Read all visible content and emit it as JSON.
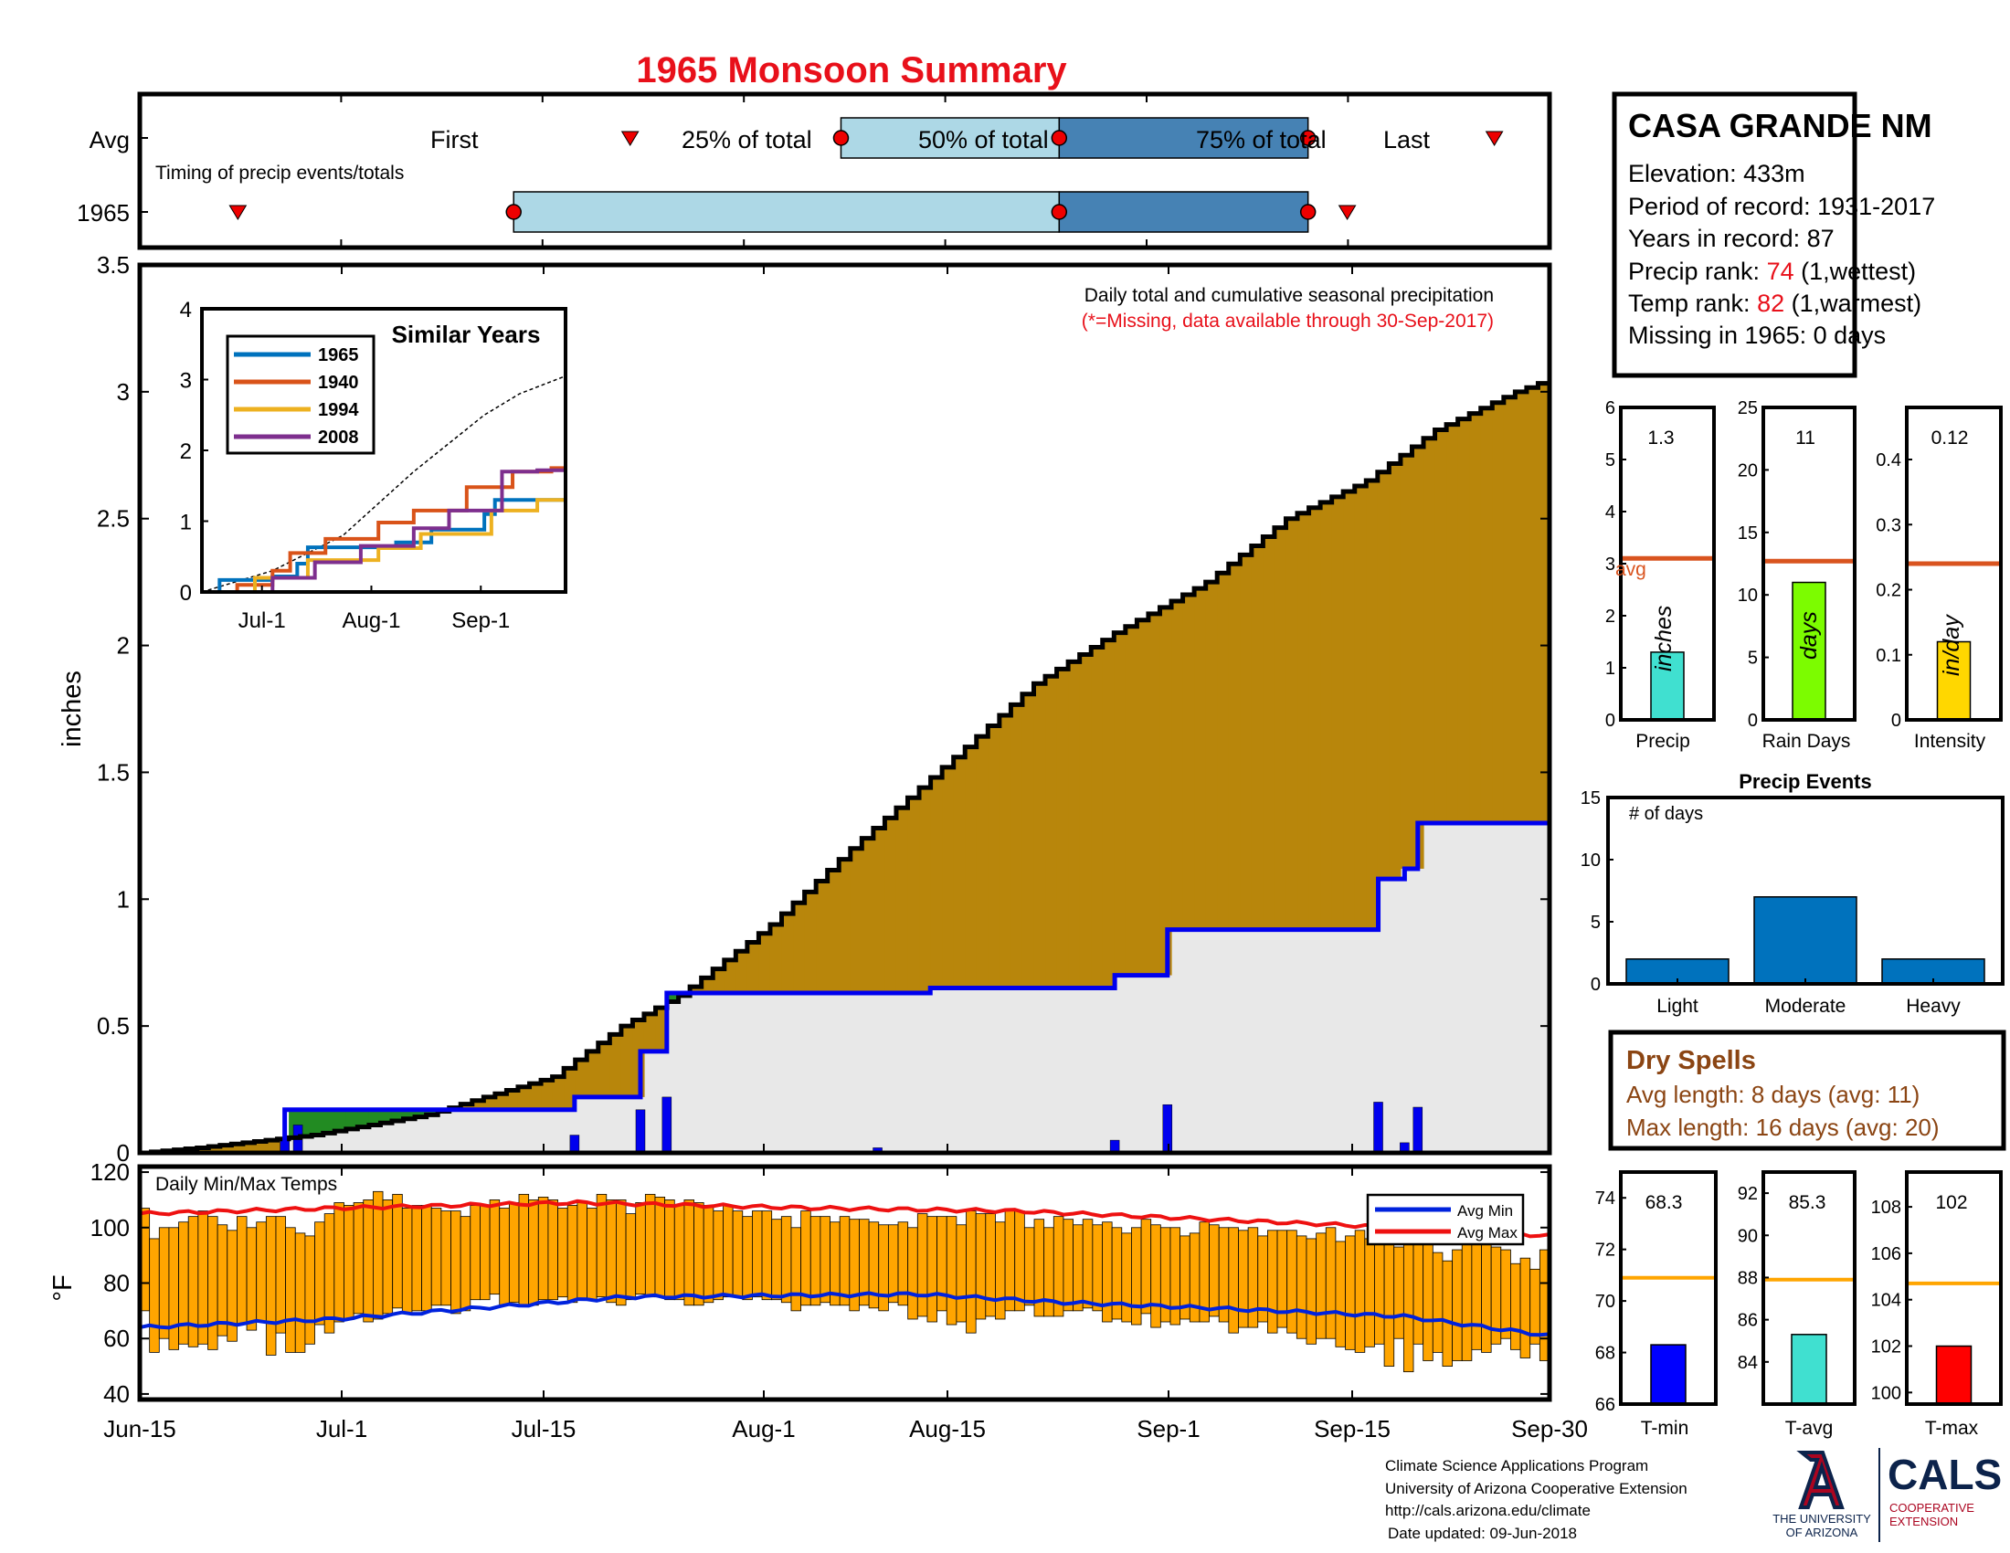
{
  "title": "1965 Monsoon Summary",
  "timing": {
    "avg_label": "Avg",
    "year_label": "1965",
    "subtitle": "Timing of precip events/totals",
    "first_label": "First",
    "last_label": "Last",
    "p25_label": "25% of total",
    "p50_label": "50% of total",
    "p75_label": "75% of total"
  },
  "station": {
    "name": "CASA GRANDE NM",
    "elevation_label": "Elevation: ",
    "elevation": "433m",
    "period_label": "Period of record: ",
    "period": "1931-2017",
    "years_label": "Years in record: ",
    "years": "87",
    "precip_rank_label": "Precip rank: ",
    "precip_rank": "74",
    "precip_rank_note": " (1,wettest)",
    "temp_rank_label": "Temp rank: ",
    "temp_rank": "82",
    "temp_rank_note": " (1,warmest)",
    "missing_label": "Missing in 1965: ",
    "missing": "0 days"
  },
  "main_chart": {
    "note1": "Daily total and cumulative seasonal precipitation",
    "note2": "(*=Missing, data available through 30-Sep-2017)",
    "ylabel": "inches",
    "yticks": [
      "0",
      "0.5",
      "1",
      "1.5",
      "2",
      "2.5",
      "3",
      "3.5"
    ],
    "xticks": [
      "Jun-15",
      "Jul-1",
      "Jul-15",
      "Aug-1",
      "Aug-15",
      "Sep-1",
      "Sep-15",
      "Sep-30"
    ]
  },
  "inset": {
    "title": "Similar Years",
    "yticks": [
      "0",
      "1",
      "2",
      "3",
      "4"
    ],
    "xticks": [
      "Jul-1",
      "Aug-1",
      "Sep-1"
    ],
    "legend": [
      "1965",
      "1940",
      "1994",
      "2008"
    ]
  },
  "temps": {
    "title": "Daily Min/Max Temps",
    "ylabel": "°F",
    "yticks": [
      "40",
      "60",
      "80",
      "100",
      "120"
    ],
    "legend_min": "Avg Min",
    "legend_max": "Avg Max"
  },
  "small_bars": {
    "precip": {
      "label": "Precip",
      "value_text": "1.3",
      "unit": "inches",
      "avg_text": "avg",
      "yticks": [
        "0",
        "1",
        "2",
        "3",
        "4",
        "5",
        "6"
      ]
    },
    "raindays": {
      "label": "Rain Days",
      "value_text": "11",
      "unit": "days",
      "yticks": [
        "0",
        "5",
        "10",
        "15",
        "20",
        "25"
      ]
    },
    "intensity": {
      "label": "Intensity",
      "value_text": "0.12",
      "unit": "in/day",
      "yticks": [
        "0",
        "0.1",
        "0.2",
        "0.3",
        "0.4"
      ]
    }
  },
  "events": {
    "title": "Precip Events",
    "ylabel": "# of days",
    "yticks": [
      "0",
      "5",
      "10",
      "15"
    ],
    "categories": [
      "Light",
      "Moderate",
      "Heavy"
    ]
  },
  "dry_spells": {
    "title": "Dry Spells",
    "avg_line": "Avg length: 8 days (avg: 11)",
    "max_line": "Max length: 16 days (avg: 20)"
  },
  "temp_bars": {
    "tmin": {
      "label": "T-min",
      "value_text": "68.3",
      "yticks": [
        "66",
        "68",
        "70",
        "72",
        "74"
      ]
    },
    "tavg": {
      "label": "T-avg",
      "value_text": "85.3",
      "yticks": [
        "84",
        "86",
        "88",
        "90",
        "92"
      ]
    },
    "tmax": {
      "label": "T-max",
      "value_text": "102",
      "yticks": [
        "100",
        "102",
        "104",
        "106",
        "108"
      ]
    }
  },
  "footer": {
    "line1": "Climate Science Applications Program",
    "line2": "University of Arizona Cooperative Extension",
    "line3": "http://cals.arizona.edu/climate",
    "line4": "Date updated: 09-Jun-2018",
    "ua_line1": "THE UNIVERSITY",
    "ua_line2": "OF ARIZONA",
    "cals": "CALS",
    "cals_line1": "COOPERATIVE",
    "cals_line2": "EXTENSION"
  },
  "colors": {
    "title_red": "#e8101a",
    "above_avg_fill": "#b8860b",
    "below_avg_fill": "#228b22",
    "normal_fill": "#e8e8e8",
    "daily_bar": "#0000ee",
    "avg_line": "#0000ee",
    "temp_bar": "#ffa500",
    "avg_min": "#0022dd",
    "avg_max": "#ee1111",
    "light_blue": "#add8e6",
    "steel_blue": "#4682b4",
    "dry_brown": "#8b4513"
  },
  "chart_data": [
    {
      "type": "timing",
      "avg": {
        "first": 4.0,
        "p25": 5.72,
        "p50": 7.5,
        "p75": 9.53,
        "last": 11.05
      },
      "y1965": {
        "first": 0.8,
        "p25": 3.05,
        "p50": 7.5,
        "p75": 9.53,
        "last": 9.85
      }
    },
    {
      "type": "area",
      "title": "Daily total and cumulative seasonal precipitation",
      "ylabel": "inches",
      "ylim": [
        0,
        3.5
      ],
      "xlim_days": [
        0,
        107
      ],
      "cumulative_1965_knots": [
        [
          0,
          0
        ],
        [
          11,
          0
        ],
        [
          11,
          0.17
        ],
        [
          33,
          0.17
        ],
        [
          33,
          0.22
        ],
        [
          38,
          0.22
        ],
        [
          38,
          0.4
        ],
        [
          40,
          0.4
        ],
        [
          40,
          0.63
        ],
        [
          60,
          0.63
        ],
        [
          60,
          0.65
        ],
        [
          74,
          0.65
        ],
        [
          74,
          0.7
        ],
        [
          78,
          0.7
        ],
        [
          78,
          0.88
        ],
        [
          94,
          0.88
        ],
        [
          94,
          1.08
        ],
        [
          96,
          1.08
        ],
        [
          96,
          1.12
        ],
        [
          97,
          1.12
        ],
        [
          97,
          1.3
        ],
        [
          107,
          1.3
        ]
      ],
      "cumulative_avg_knots": [
        [
          0,
          0
        ],
        [
          5,
          0.02
        ],
        [
          15,
          0.07
        ],
        [
          25,
          0.15
        ],
        [
          30,
          0.22
        ],
        [
          36,
          0.3
        ],
        [
          42,
          0.5
        ],
        [
          47,
          0.62
        ],
        [
          55,
          0.9
        ],
        [
          62,
          1.2
        ],
        [
          67,
          1.4
        ],
        [
          72,
          1.6
        ],
        [
          78,
          1.85
        ],
        [
          85,
          2.05
        ],
        [
          93,
          2.25
        ],
        [
          100,
          2.5
        ],
        [
          107,
          2.65
        ],
        [
          113,
          2.85
        ],
        [
          120,
          3.0
        ],
        [
          123,
          3.05
        ]
      ],
      "daily_precip_1965": [
        {
          "day": 11,
          "value": 0.06
        },
        {
          "day": 12,
          "value": 0.11
        },
        {
          "day": 33,
          "value": 0.07
        },
        {
          "day": 38,
          "value": 0.17
        },
        {
          "day": 40,
          "value": 0.22
        },
        {
          "day": 56,
          "value": 0.02
        },
        {
          "day": 74,
          "value": 0.05
        },
        {
          "day": 78,
          "value": 0.19
        },
        {
          "day": 94,
          "value": 0.2
        },
        {
          "day": 96,
          "value": 0.04
        },
        {
          "day": 97,
          "value": 0.18
        }
      ]
    },
    {
      "type": "line",
      "title": "Similar Years",
      "ylim": [
        0,
        4
      ],
      "series": [
        {
          "name": "1965",
          "knots": [
            [
              0,
              0
            ],
            [
              5,
              0
            ],
            [
              5,
              0.17
            ],
            [
              20,
              0.17
            ],
            [
              20,
              0.22
            ],
            [
              27,
              0.22
            ],
            [
              27,
              0.4
            ],
            [
              30,
              0.4
            ],
            [
              30,
              0.63
            ],
            [
              55,
              0.63
            ],
            [
              55,
              0.7
            ],
            [
              65,
              0.7
            ],
            [
              65,
              0.88
            ],
            [
              80,
              0.88
            ],
            [
              80,
              1.1
            ],
            [
              83,
              1.1
            ],
            [
              83,
              1.3
            ],
            [
              103,
              1.3
            ]
          ]
        },
        {
          "name": "1940",
          "knots": [
            [
              0,
              0
            ],
            [
              10,
              0
            ],
            [
              10,
              0.1
            ],
            [
              20,
              0.1
            ],
            [
              20,
              0.3
            ],
            [
              25,
              0.3
            ],
            [
              25,
              0.55
            ],
            [
              35,
              0.55
            ],
            [
              35,
              0.75
            ],
            [
              50,
              0.75
            ],
            [
              50,
              0.98
            ],
            [
              60,
              0.98
            ],
            [
              60,
              1.15
            ],
            [
              75,
              1.15
            ],
            [
              75,
              1.48
            ],
            [
              88,
              1.48
            ],
            [
              88,
              1.7
            ],
            [
              99,
              1.7
            ],
            [
              99,
              1.75
            ],
            [
              103,
              1.75
            ]
          ]
        },
        {
          "name": "1994",
          "knots": [
            [
              0,
              0
            ],
            [
              15,
              0
            ],
            [
              15,
              0.2
            ],
            [
              30,
              0.2
            ],
            [
              30,
              0.45
            ],
            [
              50,
              0.45
            ],
            [
              50,
              0.62
            ],
            [
              62,
              0.62
            ],
            [
              62,
              0.82
            ],
            [
              82,
              0.82
            ],
            [
              82,
              1.15
            ],
            [
              95,
              1.15
            ],
            [
              95,
              1.3
            ],
            [
              103,
              1.3
            ]
          ]
        },
        {
          "name": "2008",
          "knots": [
            [
              0,
              0
            ],
            [
              20,
              0
            ],
            [
              20,
              0.2
            ],
            [
              32,
              0.2
            ],
            [
              32,
              0.42
            ],
            [
              45,
              0.42
            ],
            [
              45,
              0.65
            ],
            [
              60,
              0.65
            ],
            [
              60,
              0.9
            ],
            [
              70,
              0.9
            ],
            [
              70,
              1.15
            ],
            [
              85,
              1.15
            ],
            [
              85,
              1.7
            ],
            [
              95,
              1.7
            ],
            [
              95,
              1.72
            ],
            [
              103,
              1.72
            ]
          ]
        }
      ],
      "avg_knots": [
        [
          0,
          0
        ],
        [
          20,
          0.3
        ],
        [
          40,
          0.8
        ],
        [
          60,
          1.7
        ],
        [
          70,
          2.1
        ],
        [
          80,
          2.5
        ],
        [
          90,
          2.8
        ],
        [
          103,
          3.05
        ]
      ]
    },
    {
      "type": "bar",
      "title": "Daily Min/Max Temps",
      "ylabel": "°F",
      "ylim": [
        38,
        122
      ],
      "tmin": [
        70,
        55,
        60,
        56,
        58,
        57,
        58,
        56,
        61,
        59,
        65,
        63,
        66,
        54,
        62,
        55,
        55,
        58,
        65,
        62,
        66,
        67,
        69,
        66,
        67,
        69,
        71,
        69,
        70,
        70,
        72,
        72,
        69,
        70,
        74,
        74,
        76,
        72,
        73,
        72,
        72,
        74,
        74,
        75,
        73,
        74,
        74,
        75,
        73,
        72,
        74,
        76,
        75,
        75,
        74,
        74,
        72,
        72,
        73,
        74,
        75,
        75,
        74,
        75,
        74,
        74,
        73,
        70,
        72,
        72,
        73,
        72,
        72,
        70,
        72,
        71,
        70,
        73,
        72,
        67,
        68,
        66,
        70,
        65,
        66,
        62,
        67,
        68,
        67,
        70,
        70,
        72,
        68,
        68,
        68,
        70,
        70,
        71,
        70,
        66,
        67,
        66,
        65,
        69,
        64,
        66,
        65,
        67,
        66,
        66,
        68,
        66,
        62,
        64,
        64,
        66,
        62,
        64,
        62,
        60,
        58,
        60,
        60,
        57,
        56,
        55,
        57,
        58,
        50,
        60,
        48,
        58,
        52,
        55,
        50,
        52,
        52,
        56,
        55,
        58,
        60,
        56,
        53,
        58,
        52
      ],
      "tmax": [
        107,
        96,
        100,
        100,
        102,
        104,
        106,
        104,
        101,
        99,
        104,
        100,
        102,
        104,
        104,
        100,
        98,
        97,
        102,
        105,
        109,
        108,
        109,
        110,
        113,
        110,
        112,
        107,
        108,
        108,
        107,
        106,
        106,
        104,
        108,
        108,
        110,
        107,
        109,
        112,
        110,
        111,
        110,
        107,
        108,
        109,
        107,
        112,
        110,
        110,
        105,
        109,
        112,
        111,
        110,
        108,
        110,
        109,
        108,
        106,
        108,
        106,
        104,
        106,
        106,
        103,
        104,
        100,
        106,
        104,
        104,
        102,
        104,
        103,
        103,
        102,
        101,
        101,
        102,
        100,
        105,
        104,
        104,
        104,
        101,
        106,
        105,
        105,
        102,
        106,
        106,
        100,
        103,
        100,
        104,
        103,
        101,
        103,
        101,
        102,
        100,
        98,
        100,
        103,
        101,
        100,
        100,
        97,
        98,
        102,
        101,
        100,
        100,
        99,
        100,
        97,
        99,
        99,
        99,
        97,
        96,
        98,
        100,
        95,
        97,
        99,
        96,
        95,
        99,
        93,
        98,
        95,
        94,
        91,
        88,
        92,
        94,
        96,
        98,
        93,
        92,
        87,
        89,
        85,
        92
      ],
      "avg_min_knots": [
        [
          0,
          64
        ],
        [
          20,
          67
        ],
        [
          50,
          75
        ],
        [
          80,
          76
        ],
        [
          95,
          73
        ],
        [
          110,
          71
        ],
        [
          130,
          68
        ],
        [
          145,
          61
        ]
      ],
      "avg_max_knots": [
        [
          0,
          105
        ],
        [
          20,
          107
        ],
        [
          45,
          109
        ],
        [
          70,
          107
        ],
        [
          90,
          106
        ],
        [
          110,
          103
        ],
        [
          130,
          100
        ],
        [
          145,
          97
        ]
      ]
    },
    {
      "type": "bar",
      "label": "Precip",
      "values": [
        1.3
      ],
      "avg": 3.1,
      "ylim": [
        0,
        6
      ]
    },
    {
      "type": "bar",
      "label": "Rain Days",
      "values": [
        11
      ],
      "avg": 12.7,
      "ylim": [
        0,
        25
      ]
    },
    {
      "type": "bar",
      "label": "Intensity",
      "values": [
        0.12
      ],
      "avg": 0.24,
      "ylim": [
        0,
        0.48
      ]
    },
    {
      "type": "bar",
      "title": "Precip Events",
      "categories": [
        "Light",
        "Moderate",
        "Heavy"
      ],
      "values": [
        2,
        7,
        2
      ],
      "ylim": [
        0,
        15
      ]
    },
    {
      "type": "bar",
      "label": "T-min",
      "values": [
        68.3
      ],
      "avg": 70.9,
      "ylim": [
        66,
        75
      ]
    },
    {
      "type": "bar",
      "label": "T-avg",
      "values": [
        85.3
      ],
      "avg": 87.9,
      "ylim": [
        82,
        93
      ]
    },
    {
      "type": "bar",
      "label": "T-max",
      "values": [
        102
      ],
      "avg": 104.7,
      "ylim": [
        99.5,
        109.5
      ]
    }
  ]
}
